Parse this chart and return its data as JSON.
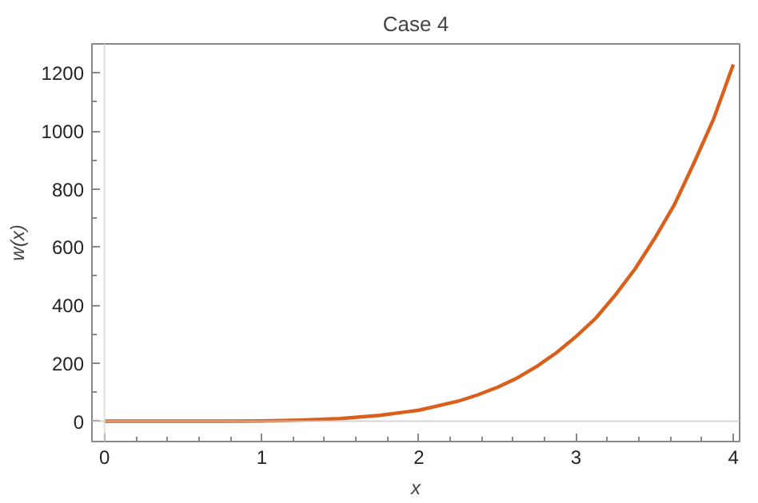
{
  "chart_data": {
    "type": "line",
    "title": "Case 4",
    "xlabel": "x",
    "ylabel": "w(x)",
    "x": [
      0,
      0.25,
      0.5,
      0.75,
      1,
      1.25,
      1.5,
      1.75,
      2,
      2.25,
      2.375,
      2.5,
      2.625,
      2.75,
      2.875,
      3,
      3.125,
      3.25,
      3.375,
      3.5,
      3.625,
      3.75,
      3.875,
      4
    ],
    "series": [
      {
        "color": "#d95f1a",
        "values": [
          0,
          0,
          0,
          0,
          1,
          4,
          9,
          20,
          38,
          69,
          91,
          117,
          149,
          189,
          236,
          292,
          355,
          435,
          525,
          630,
          746,
          890,
          1042,
          1229
        ]
      }
    ],
    "xlim": [
      -0.08,
      4.04
    ],
    "ylim": [
      -70,
      1300
    ],
    "xticks": [
      0,
      1,
      2,
      3,
      4
    ],
    "yticks": [
      0,
      200,
      400,
      600,
      800,
      1000,
      1200
    ],
    "ref_lines": [
      {
        "axis": "y",
        "value": 0,
        "color": "#c8c8c8"
      },
      {
        "axis": "x",
        "value": 0,
        "color": "#d4d4d4"
      }
    ],
    "grid": false,
    "marker": "none",
    "line_style": "solid"
  }
}
